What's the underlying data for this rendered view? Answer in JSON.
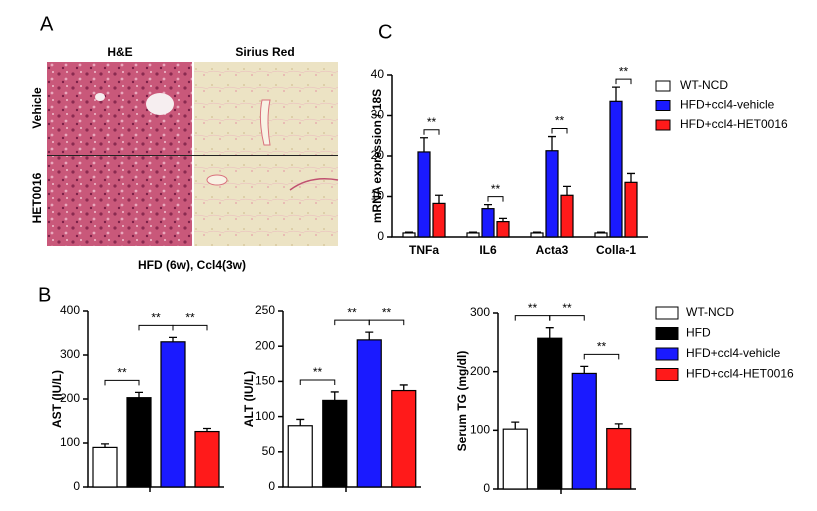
{
  "panel_a": {
    "label": "A",
    "columns": [
      "H&E",
      "Sirius Red"
    ],
    "rows": [
      "Vehicle",
      "HET0016"
    ],
    "caption": "HFD (6w), Ccl4(3w)"
  },
  "panel_b": {
    "label": "B",
    "legend": [
      {
        "name": "WT-NCD",
        "color": "#ffffff"
      },
      {
        "name": "HFD",
        "color": "#000000"
      },
      {
        "name": "HFD+ccl4-vehicle",
        "color": "#1a1aff"
      },
      {
        "name": "HFD+ccl4-HET0016",
        "color": "#ff1a1a"
      }
    ]
  },
  "panel_c_label": "C",
  "chart_data": [
    {
      "type": "grouped-bar",
      "ylabel": "mRNA expression / 18S",
      "categories": [
        "TNFa",
        "IL6",
        "Acta3",
        "Colla-1"
      ],
      "series": [
        {
          "name": "WT-NCD",
          "color": "#ffffff",
          "values": [
            1,
            1,
            1,
            1
          ],
          "errors": [
            0.2,
            0.2,
            0.2,
            0.2
          ]
        },
        {
          "name": "HFD+ccl4-vehicle",
          "color": "#1a1aff",
          "values": [
            21,
            7,
            21.3,
            33.5
          ],
          "errors": [
            3.5,
            1,
            3.5,
            3.5
          ]
        },
        {
          "name": "HFD+ccl4-HET0016",
          "color": "#ff1a1a",
          "values": [
            8.3,
            3.8,
            10.3,
            13.5
          ],
          "errors": [
            2,
            0.8,
            2.2,
            2.2
          ]
        }
      ],
      "ylim": [
        0,
        40
      ],
      "yticks": [
        0,
        10,
        20,
        30,
        40
      ],
      "annotations": [
        "**",
        "**",
        "**",
        "**"
      ]
    },
    {
      "type": "bar",
      "ylabel": "AST (IU/L)",
      "values": [
        90,
        203,
        330,
        126
      ],
      "errors": [
        8,
        12,
        10,
        7
      ],
      "ylim": [
        0,
        400
      ],
      "yticks": [
        0,
        100,
        200,
        300,
        400
      ],
      "annotations": [
        "**",
        "**",
        "**"
      ]
    },
    {
      "type": "bar",
      "ylabel": "ALT (IU/L)",
      "values": [
        87,
        123,
        209,
        137
      ],
      "errors": [
        9,
        12,
        11,
        8
      ],
      "ylim": [
        0,
        250
      ],
      "yticks": [
        0,
        50,
        100,
        150,
        200,
        250
      ],
      "annotations": [
        "**",
        "**",
        "**"
      ]
    },
    {
      "type": "bar",
      "ylabel": "Serum TG (mg/dl)",
      "values": [
        102,
        257,
        197,
        103
      ],
      "errors": [
        12,
        18,
        12,
        8
      ],
      "ylim": [
        0,
        300
      ],
      "yticks": [
        0,
        100,
        200,
        300
      ],
      "annotations": [
        "**",
        "**",
        "**"
      ]
    }
  ]
}
